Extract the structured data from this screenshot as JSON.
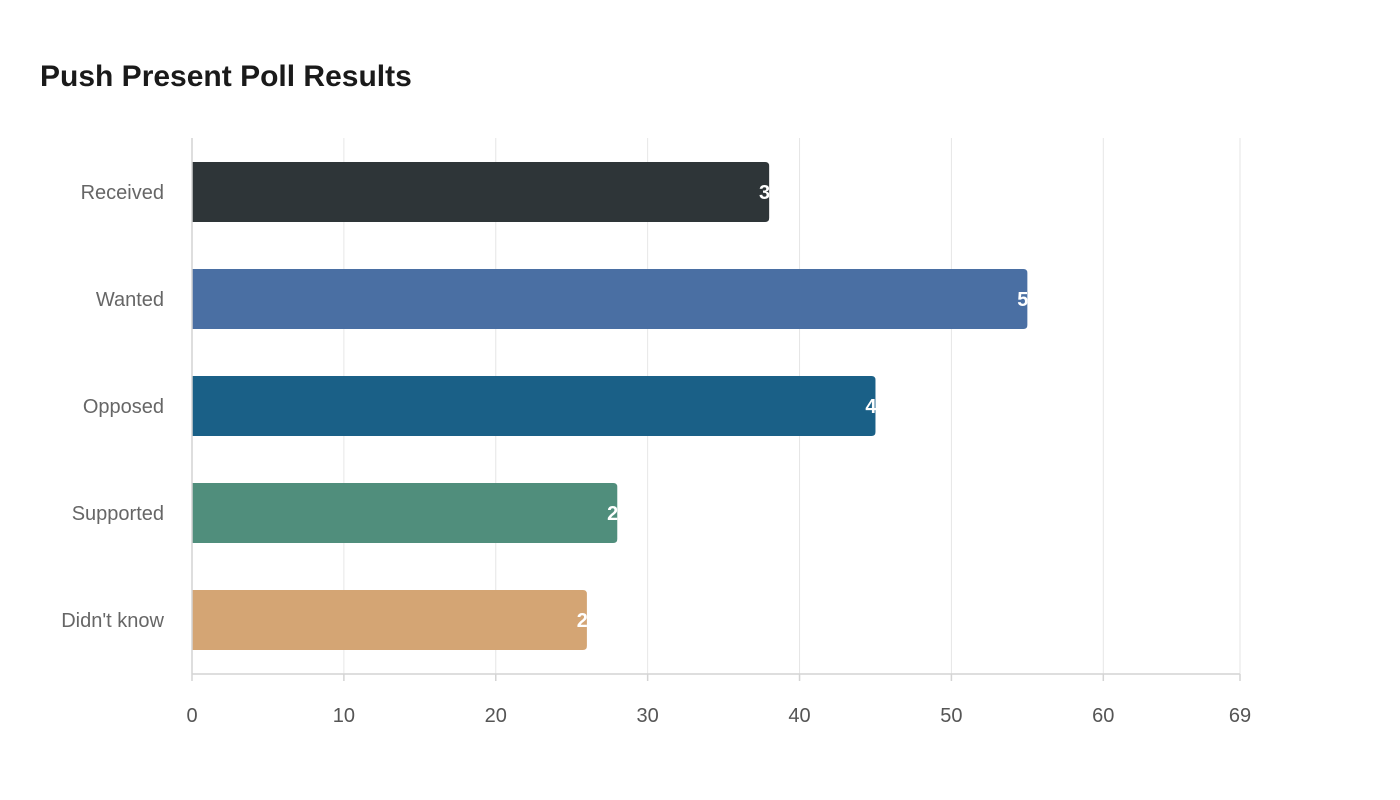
{
  "chart_data": {
    "type": "bar",
    "orientation": "horizontal",
    "title": "Push Present Poll Results",
    "xlabel": "",
    "ylabel": "",
    "categories": [
      "Received",
      "Wanted",
      "Opposed",
      "Supported",
      "Didn't know"
    ],
    "values": [
      38,
      55,
      45,
      28,
      26
    ],
    "colors": [
      "#2e3538",
      "#4a6fa3",
      "#1a6087",
      "#508e7c",
      "#d4a574"
    ],
    "xlim": [
      0,
      69
    ],
    "xticks": [
      0,
      10,
      20,
      30,
      40,
      50,
      60,
      69
    ],
    "grid": true,
    "legend": "none"
  }
}
